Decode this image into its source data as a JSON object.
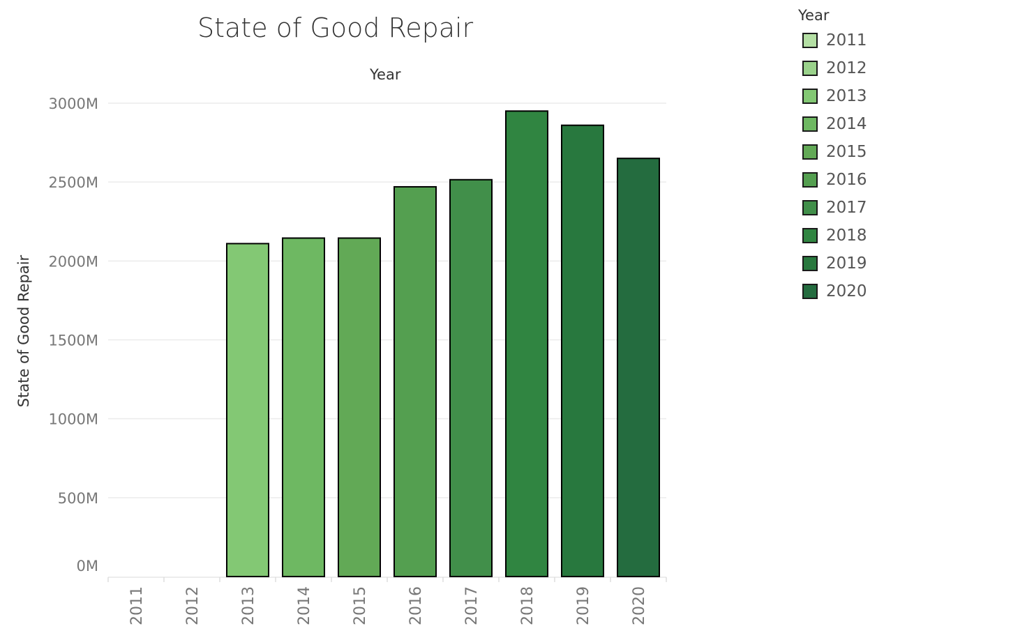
{
  "chart_data": {
    "type": "bar",
    "title": "State of Good Repair",
    "column_header": "Year",
    "ylabel": "State of Good Repair",
    "xlabel": "",
    "categories": [
      "2011",
      "2012",
      "2013",
      "2014",
      "2015",
      "2016",
      "2017",
      "2018",
      "2019",
      "2020"
    ],
    "values": [
      0,
      0,
      2110,
      2145,
      2145,
      2470,
      2515,
      2950,
      2860,
      2650
    ],
    "value_unit": "M",
    "ylim": [
      0,
      3000
    ],
    "yticks": [
      0,
      500,
      1000,
      1500,
      2000,
      2500,
      3000
    ],
    "ytick_labels": [
      "0M",
      "500M",
      "1000M",
      "1500M",
      "2000M",
      "2500M",
      "3000M"
    ],
    "grid": true,
    "legend": {
      "title": "Year",
      "placement": "right",
      "entries": [
        "2011",
        "2012",
        "2013",
        "2014",
        "2015",
        "2016",
        "2017",
        "2018",
        "2019",
        "2020"
      ]
    },
    "colors": [
      "#b4dfa4",
      "#9ad28b",
      "#83c874",
      "#6eb862",
      "#62a956",
      "#549f50",
      "#418f4a",
      "#308541",
      "#28783e",
      "#246c3f"
    ],
    "bar_outline_color": "#000000"
  }
}
